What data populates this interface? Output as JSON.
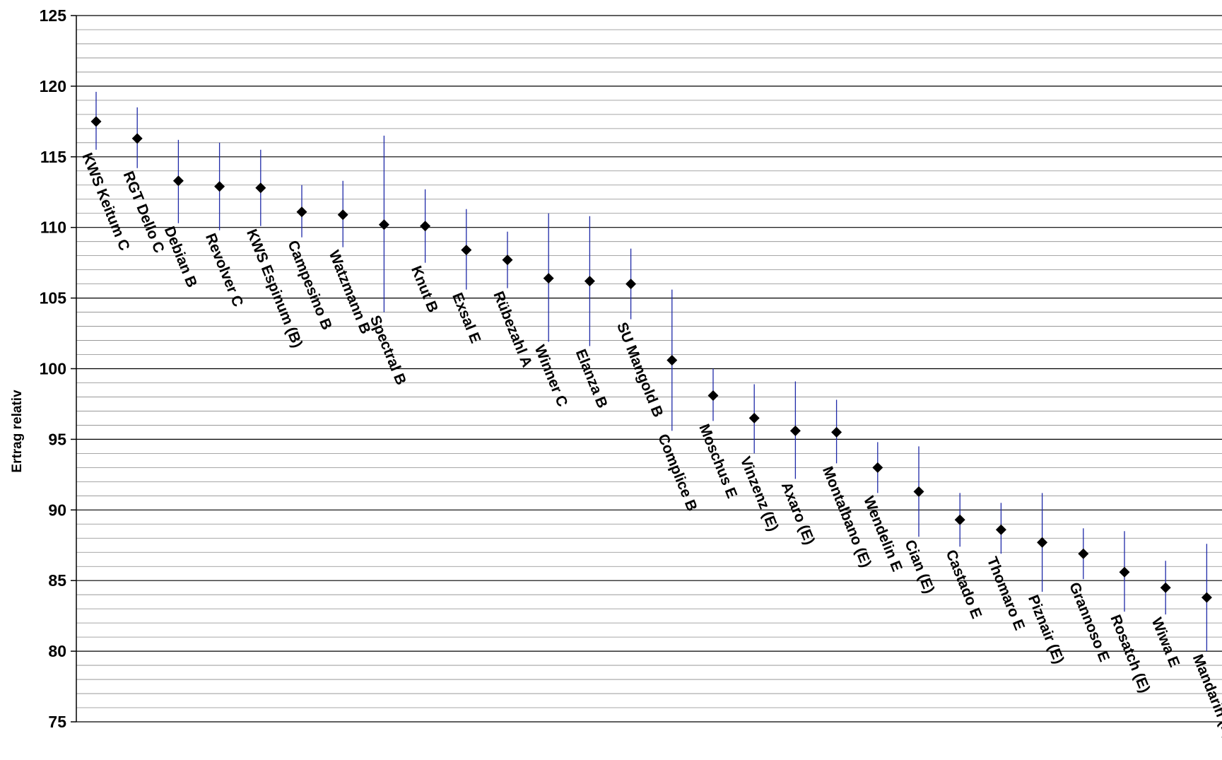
{
  "chart_data": {
    "type": "scatter",
    "ylabel": "Ertrag relativ",
    "xlabel": "",
    "ylim": [
      75,
      125
    ],
    "y_ticks": [
      "75",
      "80",
      "85",
      "90",
      "95",
      "100",
      "105",
      "110",
      "115",
      "120",
      "125"
    ],
    "minor_grid_step": 1,
    "grid": true,
    "marker": "diamond",
    "marker_color": "#000000",
    "error_bar_color": "#1f2aa8",
    "series": [
      {
        "categories": [
          "KWS Keitum C",
          "RGT Dello C",
          "Debian B",
          "Revolver C",
          "KWS Espinum (B)",
          "Campesino B",
          "Watzmann B",
          "Spectral B",
          "Knut B",
          "Exsal E",
          "Rübezahl A",
          "Winner C",
          "Elanza B",
          "SU Mangold B",
          "Complice B",
          "Moschus E",
          "Vinzenz (E)",
          "Axaro (E)",
          "Montalbano (E)",
          "Wendelin E",
          "Cian (E)",
          "Castado E",
          "Thomaro E",
          "Piznair (E)",
          "Grannoso E",
          "Rosatch (E)",
          "Wiwa E",
          "Mandarin (E)"
        ],
        "values": [
          117.5,
          116.3,
          113.3,
          112.9,
          112.8,
          111.1,
          110.9,
          110.2,
          110.1,
          108.4,
          107.7,
          106.4,
          106.2,
          106.0,
          100.6,
          98.1,
          96.5,
          95.6,
          95.5,
          93.0,
          91.3,
          89.3,
          88.6,
          87.7,
          86.9,
          85.6,
          84.5,
          83.8
        ],
        "error_low": [
          115.5,
          114.2,
          110.3,
          109.8,
          110.1,
          109.3,
          108.6,
          104.0,
          107.5,
          105.6,
          105.7,
          101.9,
          101.6,
          103.5,
          95.6,
          96.3,
          94.0,
          92.2,
          93.3,
          91.2,
          88.1,
          87.4,
          86.9,
          84.2,
          85.1,
          82.8,
          82.6,
          80.0
        ],
        "error_high": [
          119.6,
          118.5,
          116.2,
          116.0,
          115.5,
          113.0,
          113.3,
          116.5,
          112.7,
          111.3,
          109.7,
          111.0,
          110.8,
          108.5,
          105.6,
          100.0,
          98.9,
          99.1,
          97.8,
          94.8,
          94.5,
          91.2,
          90.5,
          91.2,
          88.7,
          88.5,
          86.4,
          87.6
        ]
      }
    ]
  }
}
